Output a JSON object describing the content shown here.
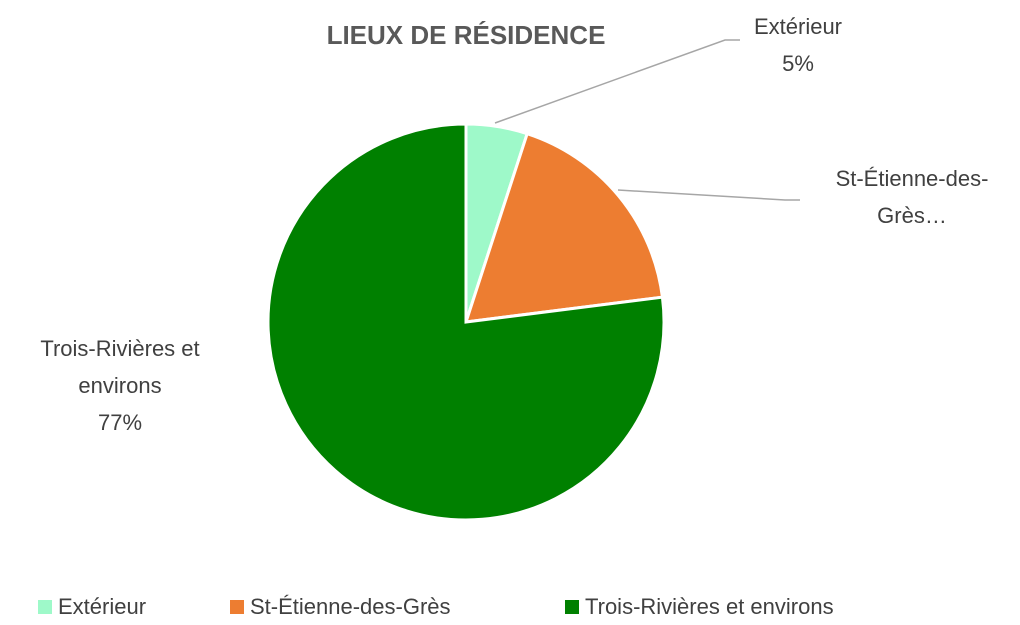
{
  "chart_data": {
    "type": "pie",
    "title": "LIEUX DE RÉSIDENCE",
    "categories": [
      "Extérieur",
      "St-Étienne-des-Grès",
      "Trois-Rivières et environs"
    ],
    "values": [
      5,
      18,
      77
    ],
    "value_labels": [
      "5%",
      null,
      "77%"
    ],
    "label_names": [
      "Extérieur",
      "St-Étienne-des-Grès…",
      "Trois-Rivières et environs"
    ],
    "colors": [
      "#9ef9c9",
      "#ed7d31",
      "#008000"
    ],
    "legend": "bottom"
  }
}
